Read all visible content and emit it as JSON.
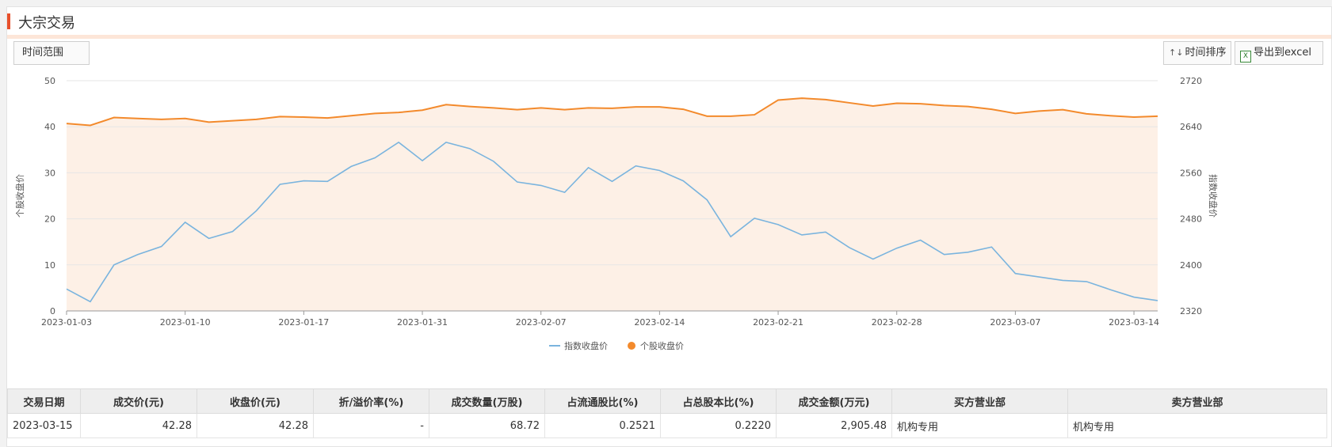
{
  "header": {
    "title": "大宗交易"
  },
  "toolbar": {
    "range_label": "时间范围",
    "sort_label": "时间排序",
    "sort_icon": "sort-arrows-icon",
    "export_label": "导出到excel",
    "export_icon": "excel-icon"
  },
  "colors": {
    "accent": "#e8502b",
    "index_line": "#7ab4de",
    "stock_line": "#f38a2c",
    "area_fill": "#fdf0e6"
  },
  "chart_data": {
    "type": "line",
    "x": [
      "2023-01-03",
      "2023-01-04",
      "2023-01-05",
      "2023-01-06",
      "2023-01-09",
      "2023-01-10",
      "2023-01-11",
      "2023-01-12",
      "2023-01-13",
      "2023-01-16",
      "2023-01-17",
      "2023-01-18",
      "2023-01-19",
      "2023-01-20",
      "2023-01-30",
      "2023-01-31",
      "2023-02-01",
      "2023-02-02",
      "2023-02-03",
      "2023-02-06",
      "2023-02-07",
      "2023-02-08",
      "2023-02-09",
      "2023-02-10",
      "2023-02-13",
      "2023-02-14",
      "2023-02-15",
      "2023-02-16",
      "2023-02-17",
      "2023-02-20",
      "2023-02-21",
      "2023-02-22",
      "2023-02-23",
      "2023-02-24",
      "2023-02-27",
      "2023-02-28",
      "2023-03-01",
      "2023-03-02",
      "2023-03-03",
      "2023-03-06",
      "2023-03-07",
      "2023-03-08",
      "2023-03-09",
      "2023-03-10",
      "2023-03-13",
      "2023-03-14",
      "2023-03-15"
    ],
    "x_ticks": [
      "2023-01-03",
      "2023-01-10",
      "2023-01-17",
      "2023-01-31",
      "2023-02-07",
      "2023-02-14",
      "2023-02-21",
      "2023-02-28",
      "2023-03-07",
      "2023-03-14"
    ],
    "ylabel_left": "个股收盘价",
    "ylabel_right": "指数收盘价",
    "ylim_left": [
      0,
      50
    ],
    "yticks_left": [
      0,
      10,
      20,
      30,
      40,
      50
    ],
    "ylim_right": [
      2320,
      2720
    ],
    "yticks_right": [
      2320,
      2400,
      2480,
      2560,
      2640,
      2720
    ],
    "grid": true,
    "legend_position": "bottom-center",
    "series": [
      {
        "name": "指数收盘价",
        "axis": "right",
        "values": [
          2358,
          2336,
          2400,
          2418,
          2432,
          2474,
          2446,
          2458,
          2494,
          2540,
          2546,
          2545,
          2571,
          2586,
          2613,
          2581,
          2613,
          2602,
          2580,
          2544,
          2538,
          2526,
          2569,
          2545,
          2572,
          2564,
          2546,
          2513,
          2449,
          2481,
          2470,
          2452,
          2457,
          2430,
          2410,
          2429,
          2443,
          2418,
          2422,
          2431,
          2385,
          2379,
          2373,
          2371,
          2357,
          2344,
          2338
        ]
      },
      {
        "name": "个股收盘价",
        "axis": "left",
        "values": [
          40.7,
          40.3,
          42.0,
          41.8,
          41.6,
          41.8,
          41.0,
          41.3,
          41.6,
          42.2,
          42.1,
          41.9,
          42.4,
          42.9,
          43.1,
          43.6,
          44.8,
          44.4,
          44.1,
          43.7,
          44.1,
          43.7,
          44.1,
          44.0,
          44.3,
          44.3,
          43.8,
          42.3,
          42.3,
          42.6,
          45.8,
          46.2,
          45.9,
          45.2,
          44.5,
          45.1,
          45.0,
          44.6,
          44.4,
          43.8,
          42.9,
          43.4,
          43.7,
          42.8,
          42.4,
          42.1,
          42.3
        ]
      }
    ]
  },
  "table": {
    "columns": [
      "交易日期",
      "成交价(元)",
      "收盘价(元)",
      "折/溢价率(%)",
      "成交数量(万股)",
      "占流通股比(%)",
      "占总股本比(%)",
      "成交金额(万元)",
      "买方营业部",
      "卖方营业部"
    ],
    "rows": [
      [
        "2023-03-15",
        "42.28",
        "42.28",
        "-",
        "68.72",
        "0.2521",
        "0.2220",
        "2,905.48",
        "机构专用",
        "机构专用"
      ]
    ]
  }
}
